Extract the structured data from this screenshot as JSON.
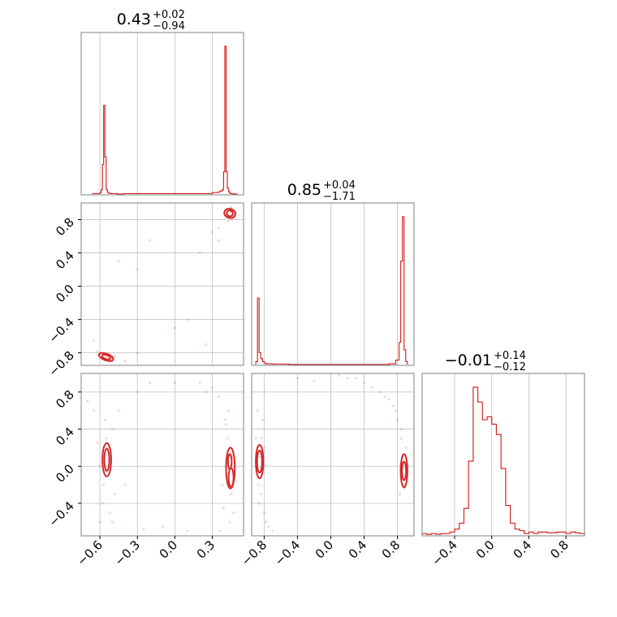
{
  "colors": {
    "series": "#d62728",
    "grid": "#bfbfbf",
    "frame": "#808080",
    "text": "#000000",
    "background": "#ffffff"
  },
  "chart_data": [
    {
      "type": "histogram",
      "panel": "p1-marginal",
      "title": {
        "value": "0.43",
        "plus": "+0.02",
        "minus": "−0.94"
      },
      "xlim": [
        -0.75,
        0.55
      ],
      "grid": true,
      "bins": {
        "edges": [
          -0.66,
          -0.6,
          -0.59,
          -0.58,
          -0.57,
          -0.56,
          -0.55,
          -0.54,
          -0.53,
          -0.52,
          -0.51,
          -0.46,
          -0.41,
          0.3,
          0.34,
          0.36,
          0.38,
          0.39,
          0.4,
          0.41,
          0.42,
          0.43,
          0.44,
          0.45,
          0.46,
          0.47,
          0.5
        ],
        "counts": [
          0.3,
          1,
          3,
          20,
          60,
          25,
          3,
          1.2,
          0.5,
          0.5,
          0.3,
          0,
          0.3,
          1,
          1.2,
          2,
          3,
          15,
          100,
          15,
          4,
          1.5,
          0.5,
          0.3,
          0.2,
          0
        ]
      }
    },
    {
      "type": "contour-scatter",
      "panel": "p1-vs-p2",
      "xlim": [
        -0.75,
        0.55
      ],
      "ylim": [
        -0.95,
        1.0
      ],
      "yticks": [
        "0.8",
        "0.4",
        "0.0",
        "−0.4",
        "−0.8"
      ],
      "grid": true,
      "points": [
        [
          0.43,
          0.88
        ],
        [
          0.45,
          0.9
        ],
        [
          0.42,
          0.85
        ],
        [
          0.47,
          0.87
        ],
        [
          0.44,
          0.92
        ],
        [
          0.4,
          0.86
        ],
        [
          0.48,
          0.83
        ],
        [
          0.46,
          0.8
        ],
        [
          0.41,
          0.92
        ],
        [
          0.43,
          0.78
        ],
        [
          0.49,
          0.88
        ],
        [
          0.35,
          0.7
        ],
        [
          0.3,
          0.65
        ],
        [
          0.45,
          0.95
        ],
        [
          0.2,
          0.4
        ],
        [
          -0.3,
          0.2
        ],
        [
          -0.45,
          0.3
        ],
        [
          -0.2,
          0.55
        ],
        [
          0.0,
          -0.5
        ],
        [
          -0.55,
          -0.85
        ],
        [
          -0.53,
          -0.87
        ],
        [
          -0.57,
          -0.82
        ],
        [
          -0.5,
          -0.88
        ],
        [
          -0.6,
          -0.8
        ],
        [
          -0.52,
          -0.9
        ],
        [
          -0.58,
          -0.86
        ],
        [
          -0.48,
          -0.84
        ],
        [
          -0.62,
          -0.78
        ],
        [
          -0.54,
          -0.83
        ],
        [
          -0.4,
          -0.9
        ],
        [
          -0.3,
          -0.8
        ],
        [
          0.25,
          -0.7
        ],
        [
          0.35,
          0.55
        ],
        [
          -0.65,
          -0.65
        ],
        [
          0.1,
          -0.4
        ]
      ],
      "contours": [
        {
          "cx": 0.44,
          "cy": 0.875,
          "rx": 0.025,
          "ry": 0.035,
          "angle": 15
        },
        {
          "cx": 0.44,
          "cy": 0.875,
          "rx": 0.045,
          "ry": 0.055,
          "angle": 15
        },
        {
          "cx": -0.55,
          "cy": -0.85,
          "rx": 0.035,
          "ry": 0.025,
          "angle": 20
        },
        {
          "cx": -0.55,
          "cy": -0.85,
          "rx": 0.06,
          "ry": 0.04,
          "angle": 20
        }
      ]
    },
    {
      "type": "histogram",
      "panel": "p2-marginal",
      "title": {
        "value": "0.85",
        "plus": "+0.04",
        "minus": "−1.71"
      },
      "xlim": [
        -0.95,
        1.0
      ],
      "grid": true,
      "bins": {
        "edges": [
          -0.9,
          -0.88,
          -0.86,
          -0.84,
          -0.82,
          -0.8,
          -0.78,
          -0.7,
          -0.5,
          0.7,
          0.78,
          0.82,
          0.84,
          0.86,
          0.88,
          0.9,
          0.92
        ],
        "counts": [
          2,
          45,
          8,
          4,
          2,
          1,
          0.5,
          0.3,
          0,
          0.5,
          3,
          15,
          70,
          100,
          10,
          2
        ]
      }
    },
    {
      "type": "contour-scatter",
      "panel": "p1-vs-p3",
      "xlim": [
        -0.75,
        0.55
      ],
      "ylim": [
        -0.75,
        1.0
      ],
      "yticks": [
        "0.8",
        "0.4",
        "0.0",
        "−0.4"
      ],
      "xticks": [
        "−0.6",
        "−0.3",
        "0.0",
        "0.3"
      ],
      "grid": true,
      "points": [
        [
          -0.55,
          0.3
        ],
        [
          -0.57,
          -0.2
        ],
        [
          -0.53,
          0.2
        ],
        [
          -0.6,
          0.0
        ],
        [
          -0.5,
          0.4
        ],
        [
          -0.58,
          -0.4
        ],
        [
          -0.52,
          -0.5
        ],
        [
          -0.56,
          0.5
        ],
        [
          -0.6,
          -0.6
        ],
        [
          -0.48,
          -0.3
        ],
        [
          -0.62,
          0.25
        ],
        [
          -0.5,
          -0.6
        ],
        [
          -0.4,
          -0.2
        ],
        [
          -0.45,
          0.6
        ],
        [
          -0.3,
          0.8
        ],
        [
          -0.2,
          0.9
        ],
        [
          -0.65,
          0.6
        ],
        [
          -0.7,
          0.7
        ],
        [
          0.42,
          0.3
        ],
        [
          0.45,
          -0.3
        ],
        [
          0.4,
          0.5
        ],
        [
          0.47,
          -0.5
        ],
        [
          0.43,
          0.6
        ],
        [
          0.38,
          -0.2
        ],
        [
          0.46,
          0.1
        ],
        [
          0.44,
          -0.6
        ],
        [
          0.35,
          0.75
        ],
        [
          0.3,
          0.85
        ],
        [
          0.2,
          0.9
        ],
        [
          0.41,
          0.45
        ],
        [
          0.48,
          -0.1
        ],
        [
          0.39,
          -0.45
        ],
        [
          0.0,
          0.9
        ],
        [
          -0.1,
          -0.65
        ],
        [
          0.1,
          -0.7
        ],
        [
          -0.25,
          -0.68
        ],
        [
          0.25,
          0.8
        ],
        [
          0.36,
          -0.7
        ]
      ],
      "contours": [
        {
          "cx": -0.545,
          "cy": 0.07,
          "rx": 0.02,
          "ry": 0.12,
          "angle": 0
        },
        {
          "cx": -0.545,
          "cy": 0.07,
          "rx": 0.035,
          "ry": 0.18,
          "angle": 0
        },
        {
          "cx": 0.44,
          "cy": 0.05,
          "rx": 0.015,
          "ry": 0.08,
          "angle": 0
        },
        {
          "cx": 0.45,
          "cy": -0.12,
          "rx": 0.02,
          "ry": 0.1,
          "angle": 0
        },
        {
          "cx": 0.445,
          "cy": -0.02,
          "rx": 0.035,
          "ry": 0.22,
          "angle": 0
        }
      ]
    },
    {
      "type": "contour-scatter",
      "panel": "p2-vs-p3",
      "xlim": [
        -0.95,
        1.0
      ],
      "ylim": [
        -0.75,
        1.0
      ],
      "xticks": [
        "−0.8",
        "−0.4",
        "0.0",
        "0.4",
        "0.8"
      ],
      "grid": true,
      "points": [
        [
          -0.85,
          0.1
        ],
        [
          -0.87,
          -0.2
        ],
        [
          -0.83,
          0.3
        ],
        [
          -0.86,
          -0.4
        ],
        [
          -0.8,
          -0.5
        ],
        [
          -0.78,
          -0.6
        ],
        [
          -0.75,
          -0.65
        ],
        [
          -0.82,
          0.5
        ],
        [
          -0.88,
          0.6
        ],
        [
          -0.9,
          0.3
        ],
        [
          -0.7,
          -0.7
        ],
        [
          -0.84,
          -0.3
        ],
        [
          -0.8,
          0.2
        ],
        [
          0.86,
          0.1
        ],
        [
          0.88,
          -0.2
        ],
        [
          0.84,
          0.3
        ],
        [
          0.87,
          -0.1
        ],
        [
          0.8,
          0.5
        ],
        [
          0.75,
          0.65
        ],
        [
          0.7,
          0.72
        ],
        [
          0.6,
          0.8
        ],
        [
          0.5,
          0.85
        ],
        [
          0.4,
          0.9
        ],
        [
          0.3,
          0.95
        ],
        [
          0.85,
          0.4
        ],
        [
          0.89,
          0.0
        ],
        [
          0.83,
          -0.3
        ],
        [
          0.9,
          0.2
        ],
        [
          0.65,
          0.75
        ],
        [
          0.78,
          0.6
        ],
        [
          -0.4,
          0.95
        ],
        [
          0.1,
          0.98
        ],
        [
          -0.2,
          0.92
        ],
        [
          0.2,
          0.95
        ]
      ],
      "contours": [
        {
          "cx": -0.855,
          "cy": 0.05,
          "rx": 0.03,
          "ry": 0.12,
          "angle": 0
        },
        {
          "cx": -0.855,
          "cy": 0.05,
          "rx": 0.045,
          "ry": 0.18,
          "angle": 0
        },
        {
          "cx": 0.88,
          "cy": -0.05,
          "rx": 0.025,
          "ry": 0.1,
          "angle": 0
        },
        {
          "cx": 0.88,
          "cy": -0.05,
          "rx": 0.04,
          "ry": 0.18,
          "angle": 0
        }
      ]
    },
    {
      "type": "histogram",
      "panel": "p3-marginal",
      "title": {
        "value": "−0.01",
        "plus": "+0.14",
        "minus": "−0.12"
      },
      "xlim": [
        -0.75,
        1.0
      ],
      "xticks": [
        "−0.4",
        "0.0",
        "0.4",
        "0.8"
      ],
      "grid": true,
      "bins": {
        "edges": [
          -0.75,
          -0.7,
          -0.65,
          -0.6,
          -0.55,
          -0.5,
          -0.45,
          -0.4,
          -0.35,
          -0.3,
          -0.25,
          -0.2,
          -0.15,
          -0.1,
          -0.05,
          0.0,
          0.05,
          0.1,
          0.15,
          0.2,
          0.25,
          0.3,
          0.35,
          0.4,
          0.45,
          0.5,
          0.6,
          0.7,
          0.8,
          0.85,
          0.9,
          0.95,
          1.0
        ],
        "counts": [
          1,
          0.5,
          1,
          0.5,
          1,
          1,
          2,
          4,
          8,
          18,
          50,
          100,
          90,
          78,
          80,
          75,
          68,
          45,
          20,
          8,
          4,
          3,
          1,
          2,
          1,
          2,
          1.5,
          2,
          1,
          2,
          1.5,
          1
        ]
      }
    }
  ]
}
